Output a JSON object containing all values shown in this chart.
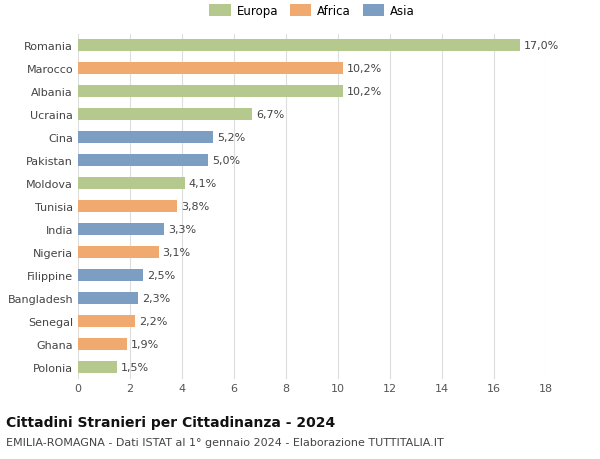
{
  "categories": [
    "Romania",
    "Marocco",
    "Albania",
    "Ucraina",
    "Cina",
    "Pakistan",
    "Moldova",
    "Tunisia",
    "India",
    "Nigeria",
    "Filippine",
    "Bangladesh",
    "Senegal",
    "Ghana",
    "Polonia"
  ],
  "values": [
    17.0,
    10.2,
    10.2,
    6.7,
    5.2,
    5.0,
    4.1,
    3.8,
    3.3,
    3.1,
    2.5,
    2.3,
    2.2,
    1.9,
    1.5
  ],
  "continents": [
    "Europa",
    "Africa",
    "Europa",
    "Europa",
    "Asia",
    "Asia",
    "Europa",
    "Africa",
    "Asia",
    "Africa",
    "Asia",
    "Asia",
    "Africa",
    "Africa",
    "Europa"
  ],
  "continent_colors": {
    "Europa": "#b5c98e",
    "Africa": "#f0a96e",
    "Asia": "#7b9ec2"
  },
  "legend_entries": [
    "Europa",
    "Africa",
    "Asia"
  ],
  "xlim": [
    0,
    18
  ],
  "xticks": [
    0,
    2,
    4,
    6,
    8,
    10,
    12,
    14,
    16,
    18
  ],
  "title": "Cittadini Stranieri per Cittadinanza - 2024",
  "subtitle": "EMILIA-ROMAGNA - Dati ISTAT al 1° gennaio 2024 - Elaborazione TUTTITALIA.IT",
  "title_fontsize": 10,
  "subtitle_fontsize": 8,
  "label_fontsize": 8,
  "tick_fontsize": 8,
  "background_color": "#ffffff",
  "grid_color": "#dddddd",
  "bar_height": 0.55
}
